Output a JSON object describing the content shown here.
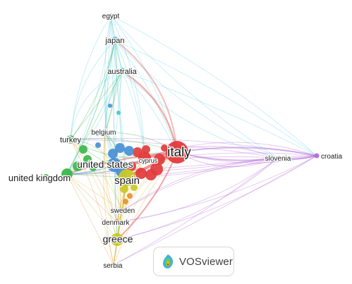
{
  "colors": {
    "cluster_red": "#e23b3b",
    "cluster_green": "#3cb84a",
    "cluster_blue": "#4a8fd6",
    "cluster_yellow": "#c8c826",
    "cluster_cyan": "#45c6e0",
    "cluster_purple": "#b36ad6",
    "cluster_orange": "#e8912e"
  },
  "nodes": [
    {
      "id": "italy",
      "label": "italy",
      "cluster": "red"
    },
    {
      "id": "cyprus",
      "label": "cyprus",
      "cluster": "red"
    },
    {
      "id": "spain",
      "label": "spain",
      "cluster": "yellow"
    },
    {
      "id": "united-states",
      "label": "united states",
      "cluster": "blue"
    },
    {
      "id": "belgium",
      "label": "belgium",
      "cluster": "blue"
    },
    {
      "id": "united-kingdom",
      "label": "united kingdom",
      "cluster": "green"
    },
    {
      "id": "turkey",
      "label": "turkey",
      "cluster": "green"
    },
    {
      "id": "greece",
      "label": "greece",
      "cluster": "yellow"
    },
    {
      "id": "sweden",
      "label": "sweden",
      "cluster": "orange"
    },
    {
      "id": "denmark",
      "label": "denmark",
      "cluster": "orange"
    },
    {
      "id": "serbia",
      "label": "serbia",
      "cluster": "yellow"
    },
    {
      "id": "egypt",
      "label": "egypt",
      "cluster": "cyan"
    },
    {
      "id": "japan",
      "label": "japan",
      "cluster": "cyan"
    },
    {
      "id": "australia",
      "label": "australia",
      "cluster": "cyan"
    },
    {
      "id": "slovenia",
      "label": "slovenia",
      "cluster": "purple"
    },
    {
      "id": "croatia",
      "label": "croatia",
      "cluster": "purple"
    }
  ],
  "logo": {
    "text": "VOSviewer",
    "icon": "vosviewer-logo-icon"
  }
}
